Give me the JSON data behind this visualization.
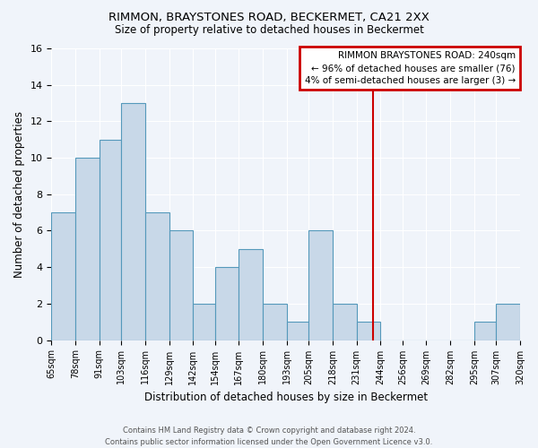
{
  "title": "RIMMON, BRAYSTONES ROAD, BECKERMET, CA21 2XX",
  "subtitle": "Size of property relative to detached houses in Beckermet",
  "xlabel": "Distribution of detached houses by size in Beckermet",
  "ylabel": "Number of detached properties",
  "footer_line1": "Contains HM Land Registry data © Crown copyright and database right 2024.",
  "footer_line2": "Contains public sector information licensed under the Open Government Licence v3.0.",
  "bins": [
    65,
    78,
    91,
    103,
    116,
    129,
    142,
    154,
    167,
    180,
    193,
    205,
    218,
    231,
    244,
    256,
    269,
    282,
    295,
    307,
    320
  ],
  "bin_labels": [
    "65sqm",
    "78sqm",
    "91sqm",
    "103sqm",
    "116sqm",
    "129sqm",
    "142sqm",
    "154sqm",
    "167sqm",
    "180sqm",
    "193sqm",
    "205sqm",
    "218sqm",
    "231sqm",
    "244sqm",
    "256sqm",
    "269sqm",
    "282sqm",
    "295sqm",
    "307sqm",
    "320sqm"
  ],
  "counts": [
    7,
    10,
    11,
    13,
    7,
    6,
    2,
    4,
    5,
    2,
    1,
    6,
    2,
    1,
    0,
    0,
    0,
    0,
    1,
    2,
    0
  ],
  "bar_color": "#c8d8e8",
  "bar_edge_color": "#5599bb",
  "vertical_line_x": 240,
  "vertical_line_color": "#cc0000",
  "legend_title": "RIMMON BRAYSTONES ROAD: 240sqm",
  "legend_line1": "← 96% of detached houses are smaller (76)",
  "legend_line2": "4% of semi-detached houses are larger (3) →",
  "legend_box_edgecolor": "#cc0000",
  "ylim": [
    0,
    16
  ],
  "yticks": [
    0,
    2,
    4,
    6,
    8,
    10,
    12,
    14,
    16
  ],
  "background_color": "#f0f4fa",
  "plot_bg_color": "#f0f4fa",
  "grid_color": "#ffffff"
}
